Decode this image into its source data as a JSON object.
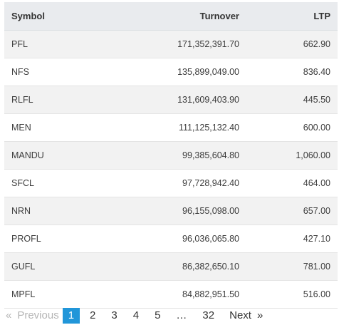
{
  "table": {
    "headers": {
      "symbol": "Symbol",
      "turnover": "Turnover",
      "ltp": "LTP"
    },
    "rows": [
      {
        "symbol": "PFL",
        "turnover": "171,352,391.70",
        "ltp": "662.90"
      },
      {
        "symbol": "NFS",
        "turnover": "135,899,049.00",
        "ltp": "836.40"
      },
      {
        "symbol": "RLFL",
        "turnover": "131,609,403.90",
        "ltp": "445.50"
      },
      {
        "symbol": "MEN",
        "turnover": "111,125,132.40",
        "ltp": "600.00"
      },
      {
        "symbol": "MANDU",
        "turnover": "99,385,604.80",
        "ltp": "1,060.00"
      },
      {
        "symbol": "SFCL",
        "turnover": "97,728,942.40",
        "ltp": "464.00"
      },
      {
        "symbol": "NRN",
        "turnover": "96,155,098.00",
        "ltp": "657.00"
      },
      {
        "symbol": "PROFL",
        "turnover": "96,036,065.80",
        "ltp": "427.10"
      },
      {
        "symbol": "GUFL",
        "turnover": "86,382,650.10",
        "ltp": "781.00"
      },
      {
        "symbol": "MPFL",
        "turnover": "84,882,951.50",
        "ltp": "516.00"
      }
    ]
  },
  "pagination": {
    "first_glyph": "«",
    "previous_label": "Previous",
    "pages": [
      "1",
      "2",
      "3",
      "4",
      "5"
    ],
    "active_page": "1",
    "ellipsis": "…",
    "last_page": "32",
    "next_label": "Next",
    "last_glyph": "»",
    "active_color": "#2196d9"
  }
}
